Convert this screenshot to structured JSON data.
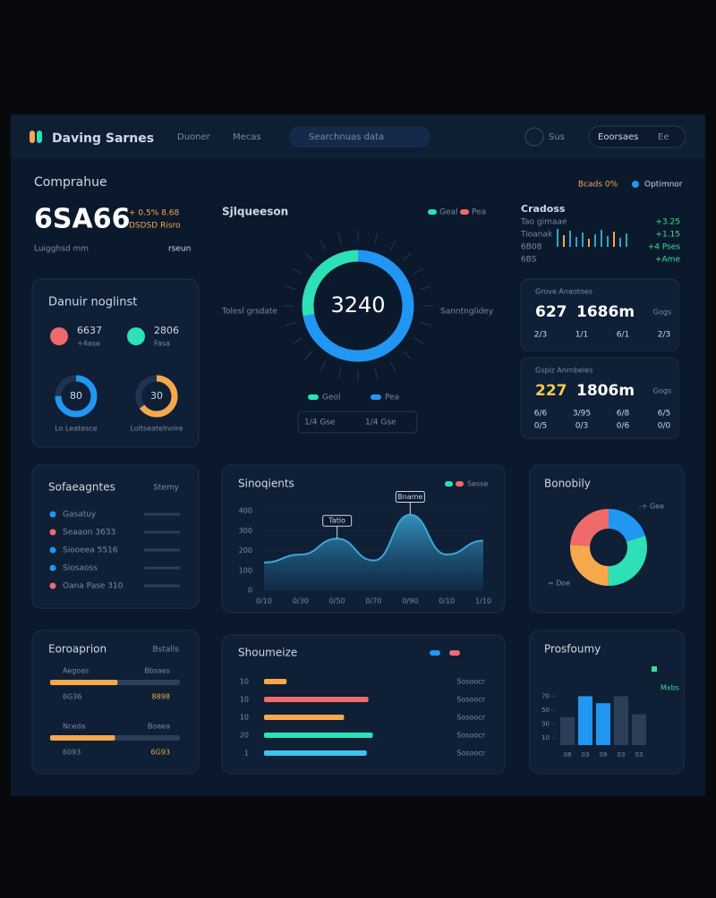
{
  "header": {
    "title": "Daving Sarnes",
    "nav": [
      "Duoner",
      "Mecas"
    ],
    "search": "Searchnuas data",
    "status": "Sus",
    "account": "Eoorsaes",
    "user": "Ee"
  },
  "overview": {
    "title": "Comprahue",
    "value": "6SA66",
    "change": "+ 0.5%  8.68",
    "note": "DSDSD Risro",
    "caption": "Luigghsd mm",
    "tag": "rseun",
    "badges": [
      "Bcads 0%",
      "Optimnor"
    ]
  },
  "gauge": {
    "title": "Sjlqueeson",
    "value": "3240",
    "left_label": "Tolesl grsdate",
    "right_label": "Sanntnglidey",
    "legend": [
      {
        "name": "Geal",
        "color": "#2de0b5"
      },
      {
        "name": "Pea",
        "color": "#f06a6a"
      }
    ],
    "segments": [
      {
        "value": 72,
        "color": "#2196f3"
      },
      {
        "value": 28,
        "color": "#2de0b5"
      }
    ],
    "footer": [
      "Geol",
      "Pea",
      "1/4 Gse",
      "1/4 Gse"
    ]
  },
  "trends": {
    "title": "Cradoss",
    "rows": [
      [
        "Tao gimaae",
        "+3.25"
      ],
      [
        "Tioanak",
        "+1.15"
      ],
      [
        "6B08",
        "+4 Pses"
      ],
      [
        "6BS",
        "+Ame"
      ]
    ]
  },
  "breakdown": {
    "title": "Danuir noglinst",
    "items": [
      {
        "label": "6637",
        "sub": "+4ase",
        "color": "#f06a6a"
      },
      {
        "label": "2806",
        "sub": "Fasa",
        "color": "#2de0b5"
      }
    ],
    "rings": [
      {
        "label": "80",
        "caption": "Lo Leatesce",
        "value": 75,
        "color": "#2196f3"
      },
      {
        "label": "30",
        "caption": "Loltseatelnoire",
        "value": 65,
        "color": "#f6a84d"
      }
    ]
  },
  "stats": [
    {
      "title": "Grove Anaotoes",
      "value": "627",
      "amount": "1686m",
      "tag": "Gogs",
      "color": "#ffffff",
      "rows": [
        [
          "2/3",
          "1/1",
          "6/1",
          "2/3"
        ]
      ]
    },
    {
      "title": "Gspiz Anrnbeles",
      "value": "227",
      "amount": "1806m",
      "tag": "Gogs",
      "color": "#f6c84d",
      "rows": [
        [
          "6/6",
          "3/95",
          "6/8",
          "6/5"
        ],
        [
          "0/5",
          "0/3",
          "0/6",
          "0/0"
        ]
      ]
    }
  ],
  "list": {
    "title": "Sofaeagntes",
    "filter": "Stemy",
    "items": [
      {
        "label": "Gasatuy",
        "color": "#2196f3"
      },
      {
        "label": "Seaaon 3633",
        "color": "#f06a6a"
      },
      {
        "label": "Siooeea 5516",
        "color": "#2196f3"
      },
      {
        "label": "Siosaoss",
        "color": "#2196f3"
      },
      {
        "label": "Oana Pase 310",
        "color": "#f06a6a"
      }
    ]
  },
  "area": {
    "title": "Sinoqients",
    "legend_label": "Sesse",
    "legend_colors": [
      "#2de0b5",
      "#f06a6a"
    ],
    "color": "#3aa6d6",
    "categories": [
      "0/10",
      "0/30",
      "0/50",
      "0/70",
      "0/90",
      "0/10",
      "1/10"
    ],
    "values": [
      140,
      180,
      260,
      150,
      380,
      180,
      250
    ],
    "ylim": [
      0,
      450
    ],
    "yticks": [
      0,
      100,
      200,
      300,
      400
    ],
    "annotations": [
      {
        "text": "Tatlo",
        "at": "0/50"
      },
      {
        "text": "Bname",
        "at": "0/90"
      }
    ]
  },
  "donut": {
    "title": "Bonobily",
    "segments": [
      {
        "value": 20,
        "color": "#2196f3"
      },
      {
        "value": 30,
        "color": "#2de0b5"
      },
      {
        "value": 26,
        "color": "#f6a84d"
      },
      {
        "value": 24,
        "color": "#f06a6a"
      }
    ],
    "labels": [
      "-+ Gee",
      "= Doe"
    ]
  },
  "progress": {
    "title": "Eoroaprion",
    "filter": "Bstalls",
    "items": [
      {
        "label": "Aegoas",
        "right": "Bbsaes",
        "caption": "6G36",
        "value": "8898",
        "pct": 52
      },
      {
        "label": "Nceda",
        "right": "Boaea",
        "caption": "6093",
        "value": "6G93",
        "pct": 50
      }
    ]
  },
  "hbars": {
    "title": "Shoumeize",
    "legend_colors": [
      "#2196f3",
      "#f06a6a"
    ],
    "categories": [
      "10",
      "10",
      "10",
      "20",
      "1"
    ],
    "values": [
      26,
      120,
      92,
      125,
      118
    ],
    "colors": [
      "#f6a84d",
      "#f06a6a",
      "#f6a84d",
      "#2de0b5",
      "#3dc4f0"
    ],
    "xlim": [
      0,
      180
    ],
    "right_labels": [
      "Sosoocr",
      "Sosoocr",
      "Sosoocr",
      "Sosoocr",
      "Sosoocr"
    ]
  },
  "vbars": {
    "title": "Prosfoumy",
    "legend": "Mxbs",
    "categories": [
      "08",
      "03",
      "09",
      "03",
      "03"
    ],
    "values": [
      40,
      70,
      60,
      70,
      44
    ],
    "colors": [
      "#2c3e58",
      "#2196f3",
      "#2196f3",
      "#2c3e58",
      "#2c3e58"
    ],
    "ylim": [
      0,
      100
    ],
    "yticks": [
      10,
      30,
      50,
      70
    ]
  }
}
